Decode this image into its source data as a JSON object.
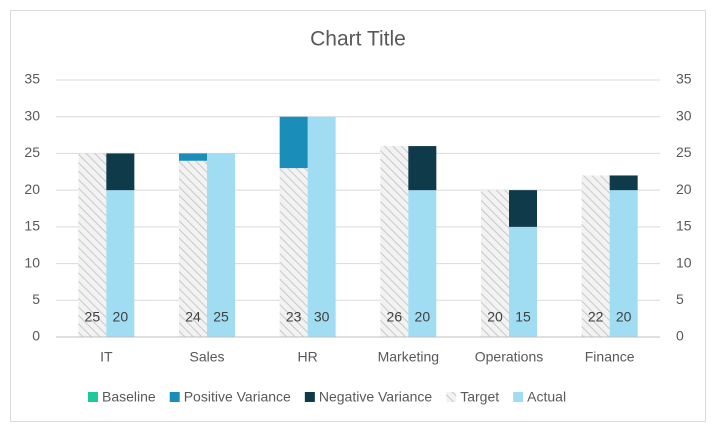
{
  "chart_data": {
    "type": "bar",
    "title": "Chart Title",
    "categories": [
      "IT",
      "Sales",
      "HR",
      "Marketing",
      "Operations",
      "Finance"
    ],
    "series": [
      {
        "name": "Baseline",
        "color": "#1fc89a",
        "values": [
          20,
          24,
          23,
          20,
          15,
          20
        ]
      },
      {
        "name": "Positive Variance",
        "color": "#1a8db8",
        "values": [
          0,
          1,
          7,
          0,
          0,
          0
        ]
      },
      {
        "name": "Negative Variance",
        "color": "#0e3a49",
        "values": [
          5,
          0,
          0,
          6,
          5,
          2
        ]
      },
      {
        "name": "Target",
        "color": "#d9d9d9",
        "fill": "hatch",
        "axis": "y2",
        "values": [
          25,
          24,
          23,
          26,
          20,
          22
        ]
      },
      {
        "name": "Actual",
        "color": "#a0ddf3",
        "axis": "y2",
        "values": [
          20,
          25,
          30,
          20,
          15,
          20
        ]
      }
    ],
    "ylim": [
      0,
      35
    ],
    "yticks": [
      0,
      5,
      10,
      15,
      20,
      25,
      30,
      35
    ],
    "y2lim": [
      0,
      35
    ],
    "y2ticks": [
      0,
      5,
      10,
      15,
      20,
      25,
      30,
      35
    ],
    "grid": true,
    "legend": "bottom"
  }
}
